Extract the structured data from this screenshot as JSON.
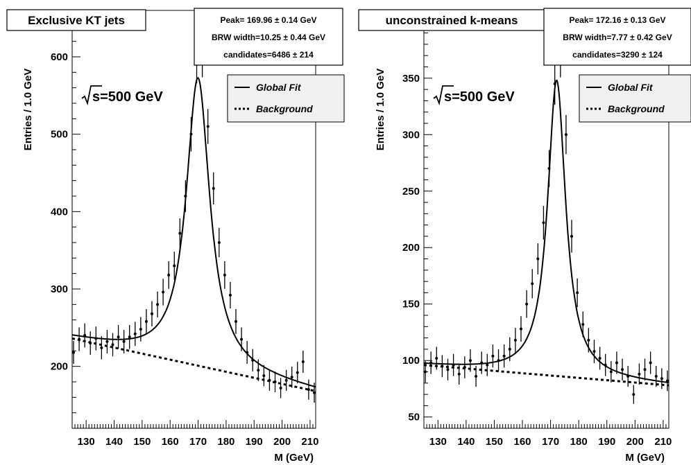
{
  "chart_data": [
    {
      "type": "scatter",
      "title": "Exclusive KT jets",
      "xlabel": "M (GeV)",
      "ylabel": "Entries / 1.0 GeV",
      "annotation": "s=500 GeV",
      "fit_stats": {
        "peak": "Peak= 169.96 ± 0.14 GeV",
        "width": "BRW width=10.25 ± 0.44 GeV",
        "candidates": "candidates=6486 ± 214"
      },
      "legend": [
        "Global Fit",
        "Background"
      ],
      "legend_position": "top-right",
      "xlim": [
        125,
        212
      ],
      "ylim": [
        120,
        660
      ],
      "xticks": [
        "130",
        "140",
        "150",
        "160",
        "170",
        "180",
        "190",
        "200",
        "210"
      ],
      "yticks": [
        "200",
        "300",
        "400",
        "500",
        "600"
      ],
      "fit": {
        "peak": 169.96,
        "width": 10.25,
        "amplitude": 372,
        "background_start": 236,
        "background_end": 168
      },
      "points": [
        [
          125.5,
          218
        ],
        [
          127.5,
          235
        ],
        [
          129.5,
          240
        ],
        [
          131.5,
          230
        ],
        [
          133.5,
          236
        ],
        [
          135.5,
          224
        ],
        [
          137.5,
          232
        ],
        [
          139.5,
          228
        ],
        [
          141.5,
          238
        ],
        [
          143.5,
          232
        ],
        [
          145.5,
          238
        ],
        [
          147.5,
          242
        ],
        [
          149.5,
          248
        ],
        [
          151.5,
          258
        ],
        [
          153.5,
          268
        ],
        [
          155.5,
          280
        ],
        [
          157.5,
          296
        ],
        [
          159.5,
          318
        ],
        [
          161.5,
          330
        ],
        [
          163.5,
          372
        ],
        [
          165.5,
          420
        ],
        [
          167.5,
          500
        ],
        [
          169.5,
          590
        ],
        [
          171.5,
          598
        ],
        [
          173.5,
          510
        ],
        [
          175.5,
          430
        ],
        [
          177.5,
          360
        ],
        [
          179.5,
          318
        ],
        [
          181.5,
          292
        ],
        [
          183.5,
          258
        ],
        [
          185.5,
          235
        ],
        [
          187.5,
          218
        ],
        [
          189.5,
          208
        ],
        [
          191.5,
          195
        ],
        [
          193.5,
          188
        ],
        [
          195.5,
          182
        ],
        [
          197.5,
          180
        ],
        [
          199.5,
          172
        ],
        [
          201.5,
          182
        ],
        [
          203.5,
          186
        ],
        [
          205.5,
          192
        ],
        [
          207.5,
          206
        ],
        [
          209.5,
          170
        ],
        [
          211.5,
          166
        ]
      ]
    },
    {
      "type": "scatter",
      "title": "unconstrained k-means",
      "xlabel": "M (GeV)",
      "ylabel": "Entries / 1.0 GeV",
      "annotation": "s=500 GeV",
      "fit_stats": {
        "peak": "Peak= 172.16 ± 0.13 GeV",
        "width": "BRW width=7.77 ± 0.42 GeV",
        "candidates": "candidates=3290 ± 124"
      },
      "legend": [
        "Global Fit",
        "Background"
      ],
      "legend_position": "top-right",
      "xlim": [
        125,
        212
      ],
      "ylim": [
        40,
        410
      ],
      "xticks": [
        "130",
        "140",
        "150",
        "160",
        "170",
        "180",
        "190",
        "200",
        "210"
      ],
      "yticks": [
        "50",
        "100",
        "150",
        "200",
        "250",
        "300",
        "350",
        "400"
      ],
      "fit": {
        "peak": 172.16,
        "width": 7.77,
        "amplitude": 262,
        "background_start": 96,
        "background_end": 78
      },
      "points": [
        [
          125.5,
          90
        ],
        [
          127.5,
          98
        ],
        [
          129.5,
          102
        ],
        [
          131.5,
          95
        ],
        [
          133.5,
          92
        ],
        [
          135.5,
          96
        ],
        [
          137.5,
          88
        ],
        [
          139.5,
          94
        ],
        [
          141.5,
          100
        ],
        [
          143.5,
          86
        ],
        [
          145.5,
          98
        ],
        [
          147.5,
          96
        ],
        [
          149.5,
          104
        ],
        [
          151.5,
          100
        ],
        [
          153.5,
          104
        ],
        [
          155.5,
          110
        ],
        [
          157.5,
          118
        ],
        [
          159.5,
          128
        ],
        [
          161.5,
          150
        ],
        [
          163.5,
          168
        ],
        [
          165.5,
          190
        ],
        [
          167.5,
          222
        ],
        [
          169.5,
          270
        ],
        [
          171.5,
          345
        ],
        [
          173.5,
          370
        ],
        [
          175.5,
          300
        ],
        [
          177.5,
          210
        ],
        [
          179.5,
          160
        ],
        [
          181.5,
          132
        ],
        [
          183.5,
          118
        ],
        [
          185.5,
          108
        ],
        [
          187.5,
          102
        ],
        [
          189.5,
          96
        ],
        [
          191.5,
          90
        ],
        [
          193.5,
          98
        ],
        [
          195.5,
          92
        ],
        [
          197.5,
          86
        ],
        [
          199.5,
          70
        ],
        [
          201.5,
          88
        ],
        [
          203.5,
          92
        ],
        [
          205.5,
          98
        ],
        [
          207.5,
          86
        ],
        [
          209.5,
          84
        ],
        [
          211.5,
          82
        ]
      ]
    }
  ]
}
